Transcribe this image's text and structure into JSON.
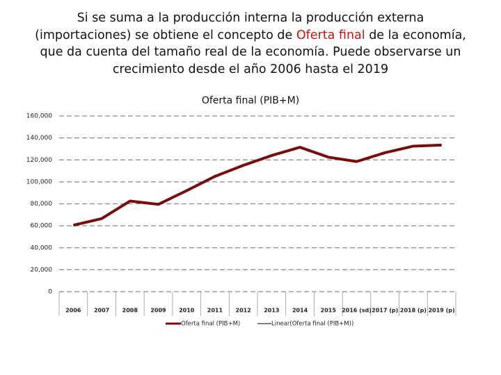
{
  "heading": {
    "before": "Si se suma a la producción interna la producción externa (importaciones) se obtiene el concepto de ",
    "highlight": "Oferta final",
    "after": " de la economía, que da cuenta del tamaño real de la economía. Puede observarse un crecimiento desde el año 2006 hasta el 2019"
  },
  "chart_data": {
    "type": "line",
    "title": "Oferta final (PIB+M)",
    "categories": [
      "2006",
      "2007",
      "2008",
      "2009",
      "2010",
      "2011",
      "2012",
      "2013",
      "2014",
      "2015",
      "2016 (sd)",
      "2017 (p)",
      "2018 (p)",
      "2019 (p)"
    ],
    "series": [
      {
        "name": "Oferta final (PIB+M)",
        "color": "#7b0c0c",
        "values": [
          60500,
          66500,
          82500,
          79500,
          92000,
          105000,
          115000,
          124000,
          131500,
          122500,
          118500,
          126500,
          132500,
          133500
        ]
      }
    ],
    "trendline": {
      "name": "Linear(Oferta final (PIB+M))",
      "color": "#000000"
    },
    "ylim": [
      0,
      160000
    ],
    "yticks": [
      0,
      {
        "value": 20000,
        "label": "20,000"
      },
      {
        "value": 40000,
        "label": "40,000"
      },
      {
        "value": 60000,
        "label": "60,000"
      },
      {
        "value": 80000,
        "label": "80,000"
      },
      {
        "value": 100000,
        "label": "100,000"
      },
      {
        "value": 120000,
        "label": "120,000"
      },
      {
        "value": 140000,
        "label": "140,000"
      },
      {
        "value": 160000,
        "label": "160,000"
      }
    ],
    "grid": true
  }
}
